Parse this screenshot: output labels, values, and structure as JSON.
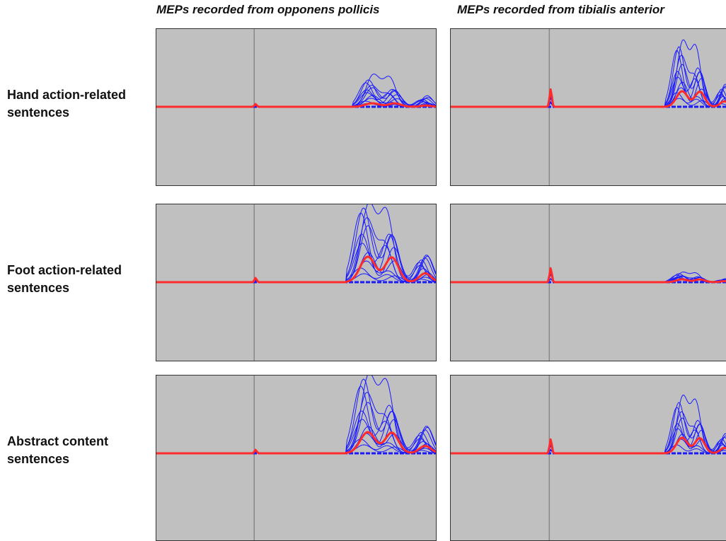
{
  "column_titles": [
    "MEPs recorded from opponens pollicis",
    "MEPs recorded from tibialis anterior"
  ],
  "row_labels": [
    [
      "Hand action-related",
      "sentences"
    ],
    [
      "Foot action-related",
      "sentences"
    ],
    [
      "Abstract content",
      "sentences"
    ]
  ],
  "colors": {
    "panel_bg": "#c0c0c0",
    "trials": "#1a1aff",
    "average": "#ff2a2a",
    "stim_marker": "#888888"
  },
  "chart_data": [
    {
      "type": "line",
      "column": "MEPs recorded from opponens pollicis",
      "row": "Hand action-related sentences",
      "xlim": [
        0,
        1
      ],
      "ylim": [
        -1,
        1
      ],
      "stimulus_x": 0.35,
      "artifact_peak": 0.04,
      "mep_onset": 0.72,
      "mep_end": 1.0,
      "trial_peaks": [
        0.45,
        0.38,
        0.34,
        0.3,
        0.27,
        0.24,
        0.2,
        0.16,
        0.12,
        0.08,
        0.05
      ],
      "average_peak": 0.05
    },
    {
      "type": "line",
      "column": "MEPs recorded from tibialis anterior",
      "row": "Hand action-related sentences",
      "xlim": [
        0,
        1
      ],
      "ylim": [
        -1,
        1
      ],
      "stimulus_x": 0.35,
      "artifact_peak": 0.25,
      "mep_onset": 0.78,
      "mep_end": 1.0,
      "trial_peaks": [
        0.92,
        0.85,
        0.8,
        0.72,
        0.6,
        0.5,
        0.42,
        0.35,
        0.27,
        0.2,
        0.12
      ],
      "average_peak": 0.22
    },
    {
      "type": "line",
      "column": "MEPs recorded from opponens pollicis",
      "row": "Foot action-related sentences",
      "xlim": [
        0,
        1
      ],
      "ylim": [
        -1,
        1
      ],
      "stimulus_x": 0.35,
      "artifact_peak": 0.06,
      "mep_onset": 0.7,
      "mep_end": 1.0,
      "trial_peaks": [
        1.1,
        1.05,
        0.98,
        0.9,
        0.8,
        0.68,
        0.55,
        0.42,
        0.3,
        0.2,
        0.12
      ],
      "average_peak": 0.36
    },
    {
      "type": "line",
      "column": "MEPs recorded from tibialis anterior",
      "row": "Foot action-related sentences",
      "xlim": [
        0,
        1
      ],
      "ylim": [
        -1,
        1
      ],
      "stimulus_x": 0.35,
      "artifact_peak": 0.2,
      "mep_onset": 0.78,
      "mep_end": 1.0,
      "trial_peaks": [
        0.14,
        0.12,
        0.1,
        0.09,
        0.08,
        0.07,
        0.06,
        0.05
      ],
      "average_peak": 0.04
    },
    {
      "type": "line",
      "column": "MEPs recorded from opponens pollicis",
      "row": "Abstract content sentences",
      "xlim": [
        0,
        1
      ],
      "ylim": [
        -1,
        1
      ],
      "stimulus_x": 0.35,
      "artifact_peak": 0.05,
      "mep_onset": 0.7,
      "mep_end": 1.0,
      "trial_peaks": [
        1.1,
        1.05,
        0.95,
        0.85,
        0.72,
        0.6,
        0.48,
        0.38,
        0.28,
        0.2,
        0.12
      ],
      "average_peak": 0.3
    },
    {
      "type": "line",
      "column": "MEPs recorded from tibialis anterior",
      "row": "Abstract content sentences",
      "xlim": [
        0,
        1
      ],
      "ylim": [
        -1,
        1
      ],
      "stimulus_x": 0.35,
      "artifact_peak": 0.2,
      "mep_onset": 0.78,
      "mep_end": 1.0,
      "trial_peaks": [
        0.8,
        0.72,
        0.65,
        0.58,
        0.5,
        0.42,
        0.35,
        0.27,
        0.2,
        0.12
      ],
      "average_peak": 0.22
    }
  ]
}
